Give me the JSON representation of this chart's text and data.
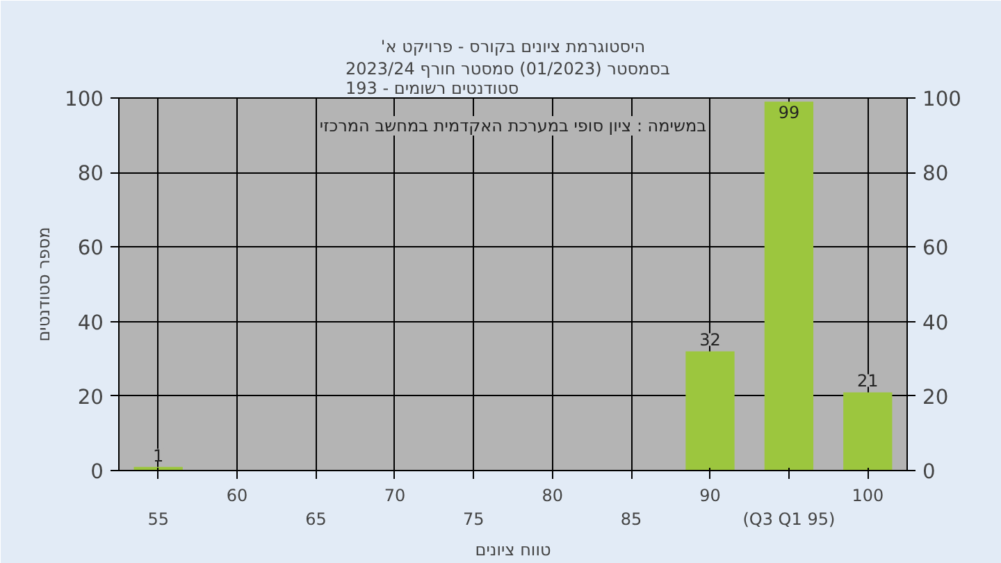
{
  "chart_data": {
    "type": "bar",
    "title": "'היסטוגרמת ציונים בקורס - פרויקט א",
    "subtitle": "בסמסטר  (01/2023)  סמסטר חורף 2023/24\nסטודנטים רשומים - 193",
    "xlabel": "טווח ציונים",
    "ylabel": "מספר סטודנטים",
    "categories": [
      "55",
      "60",
      "65",
      "70",
      "75",
      "80",
      "85",
      "90",
      "(Q3 Q1 95)",
      "100"
    ],
    "values": [
      1,
      0,
      0,
      0,
      0,
      0,
      0,
      32,
      99,
      21
    ],
    "value_labels": [
      "1",
      null,
      null,
      null,
      null,
      null,
      null,
      "32",
      "99",
      "21"
    ],
    "color": "#9cc63e",
    "ylim": [
      0,
      100
    ],
    "yticks": [
      0,
      20,
      40,
      60,
      80,
      100
    ],
    "y2lim": [
      0,
      100
    ],
    "y2ticks": [
      0,
      20,
      40,
      60,
      80,
      100
    ],
    "grid": true,
    "annotations": [
      "במשימה : ציון סופי במערכת האקדמית במחשב המרכזי"
    ]
  }
}
